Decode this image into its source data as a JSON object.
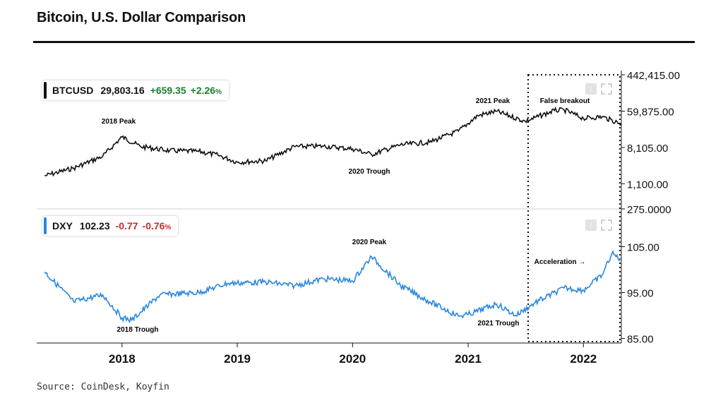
{
  "title": "Bitcoin, U.S. Dollar Comparison",
  "source": "Source: CoinDesk, Koyfin",
  "colors": {
    "btc": "#111111",
    "dxy": "#2a86e0",
    "positive": "#1a7f2e",
    "negative": "#d12a2a"
  },
  "btc_legend": {
    "symbol": "BTCUSD",
    "price": "29,803.16",
    "change": "+659.35",
    "pct": "+2.26",
    "pct_unit": "%"
  },
  "dxy_legend": {
    "symbol": "DXY",
    "price": "102.23",
    "change": "-0.77",
    "pct": "-0.76",
    "pct_unit": "%"
  },
  "controls": {
    "download_icon": "download-icon",
    "upload_icon": "upload-icon",
    "fullscreen_icon": "fullscreen-icon"
  },
  "chart_data": [
    {
      "type": "line",
      "title": "",
      "series": [
        {
          "name": "BTCUSD",
          "x": [
            "2017-05",
            "2017-08",
            "2017-11",
            "2018-01",
            "2018-03",
            "2018-06",
            "2018-09",
            "2018-11",
            "2019-01",
            "2019-04",
            "2019-07",
            "2019-10",
            "2020-01",
            "2020-03",
            "2020-06",
            "2020-09",
            "2020-12",
            "2021-02",
            "2021-04",
            "2021-07",
            "2021-10",
            "2021-11",
            "2022-01",
            "2022-03",
            "2022-05"
          ],
          "values": [
            1700,
            2600,
            5000,
            14500,
            8500,
            6800,
            6500,
            5300,
            3600,
            3900,
            8500,
            8700,
            7500,
            5500,
            9400,
            10800,
            20000,
            47000,
            59000,
            34000,
            62000,
            64000,
            40000,
            44000,
            29800
          ]
        }
      ],
      "yscale": "log",
      "ylim": [
        275,
        442415
      ],
      "y_ticks": [
        "442,415.00",
        "59,875.00",
        "8,105.00",
        "1,100.00",
        "275.0000"
      ],
      "annotations": [
        "2018 Peak",
        "2020 Trough",
        "2021 Peak",
        "False breakout"
      ]
    },
    {
      "type": "line",
      "title": "",
      "series": [
        {
          "name": "DXY",
          "x": [
            "2017-05",
            "2017-08",
            "2017-11",
            "2018-01",
            "2018-02",
            "2018-05",
            "2018-09",
            "2018-12",
            "2019-04",
            "2019-07",
            "2019-10",
            "2020-01",
            "2020-03",
            "2020-06",
            "2020-09",
            "2020-12",
            "2021-01",
            "2021-04",
            "2021-06",
            "2021-08",
            "2021-11",
            "2022-01",
            "2022-03",
            "2022-04",
            "2022-05"
          ],
          "values": [
            99.5,
            93.0,
            94.5,
            89.5,
            89.0,
            94.5,
            95.0,
            97.0,
            97.3,
            96.5,
            98.0,
            97.5,
            102.8,
            96.5,
            93.0,
            89.9,
            90.2,
            92.5,
            90.0,
            92.8,
            96.0,
            95.5,
            98.8,
            103.5,
            102.2
          ]
        }
      ],
      "ylim": [
        84,
        108
      ],
      "y_ticks": [
        "105.00",
        "95.00",
        "85.00"
      ],
      "annotations": [
        "2018 Trough",
        "2020 Peak",
        "2021 Trough",
        "Acceleration →"
      ]
    }
  ],
  "x_axis": {
    "ticks": [
      "2018",
      "2019",
      "2020",
      "2021",
      "2022"
    ]
  }
}
